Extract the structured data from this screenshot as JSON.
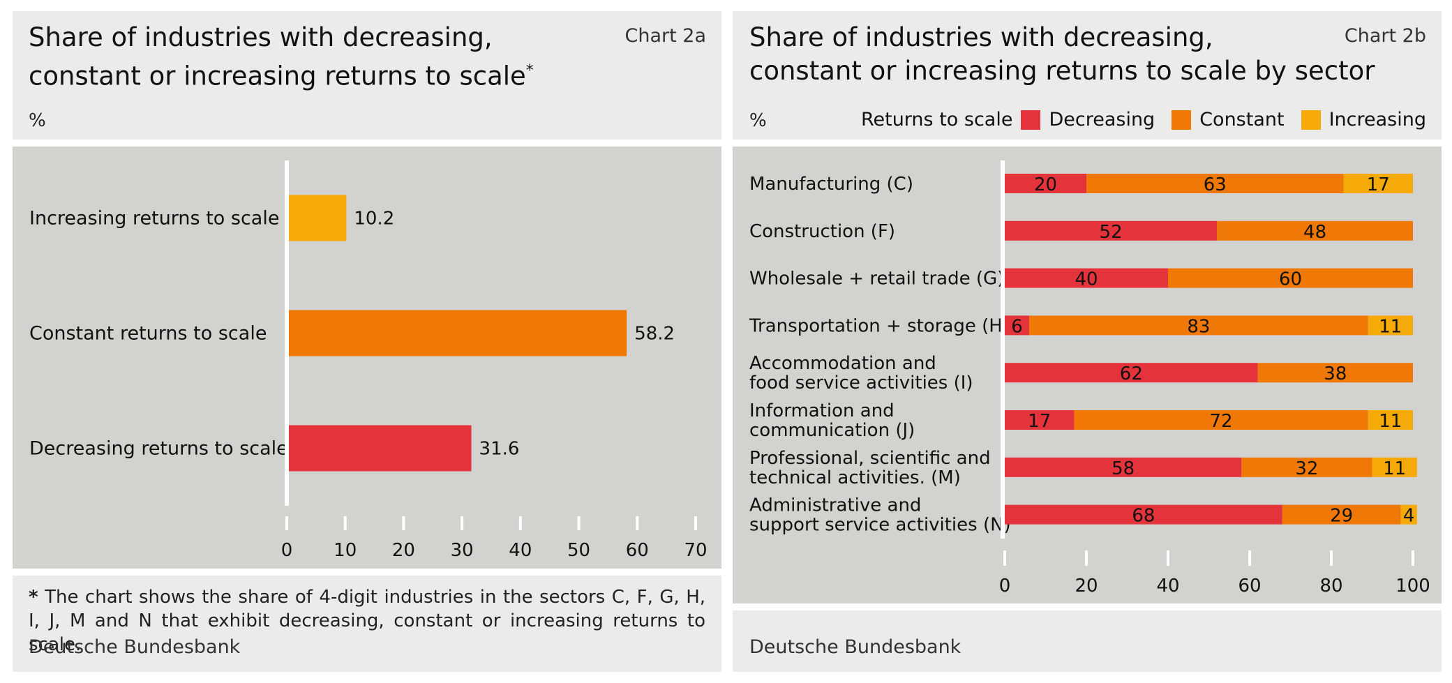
{
  "colors": {
    "decreasing": "#e5333b",
    "constant": "#ef7807",
    "increasing": "#f5aa09",
    "axis": "#ffffff"
  },
  "left": {
    "title_line1": "Share of industries with decreasing,",
    "title_line2": "constant or increasing returns to scale",
    "title_mark": "*",
    "chart_number": "Chart 2a",
    "unit": "%",
    "footnote_mark": "*",
    "footnote_text": "The chart shows the share of 4-digit industries in the sectors C, F, G, H, I, J, M and N that exhibit decreasing, constant or increasing returns to scale.",
    "source": "Deutsche Bundesbank"
  },
  "right": {
    "title_line1": "Share of industries with decreasing,",
    "title_line2": "constant or increasing returns to scale by sector",
    "chart_number": "Chart 2b",
    "unit": "%",
    "legend_title": "Returns to scale",
    "legend": [
      "Decreasing",
      "Constant",
      "Increasing"
    ],
    "source": "Deutsche Bundesbank"
  },
  "chart_data": [
    {
      "type": "bar",
      "orientation": "horizontal",
      "categories": [
        "Increasing returns to scale",
        "Constant returns to scale",
        "Decreasing returns to scale"
      ],
      "values": [
        10.2,
        58.2,
        31.6
      ],
      "value_labels": [
        "10.2",
        "58.2",
        "31.6"
      ],
      "bar_colors": [
        "#f5aa09",
        "#ef7807",
        "#e5333b"
      ],
      "xlim": [
        0,
        70
      ],
      "xticks": [
        0,
        10,
        20,
        30,
        40,
        50,
        60,
        70
      ]
    },
    {
      "type": "bar",
      "orientation": "horizontal",
      "stacked": true,
      "categories": [
        [
          "Manufacturing (C)"
        ],
        [
          "Construction (F)"
        ],
        [
          "Wholesale + retail trade (G)"
        ],
        [
          "Transportation + storage (H)"
        ],
        [
          "Accommodation and",
          "food service activities (I)"
        ],
        [
          "Information and",
          "communication (J)"
        ],
        [
          "Professional, scientific and",
          "technical activities. (M)"
        ],
        [
          "Administrative and",
          "support service activities (N)"
        ]
      ],
      "series": [
        {
          "name": "Decreasing",
          "values": [
            20,
            52,
            40,
            6,
            62,
            17,
            58,
            68
          ]
        },
        {
          "name": "Constant",
          "values": [
            63,
            48,
            60,
            83,
            38,
            72,
            32,
            29
          ]
        },
        {
          "name": "Increasing",
          "values": [
            17,
            0,
            0,
            11,
            0,
            11,
            11,
            4
          ]
        }
      ],
      "xlim": [
        0,
        100
      ],
      "xticks": [
        0,
        20,
        40,
        60,
        80,
        100
      ]
    }
  ]
}
